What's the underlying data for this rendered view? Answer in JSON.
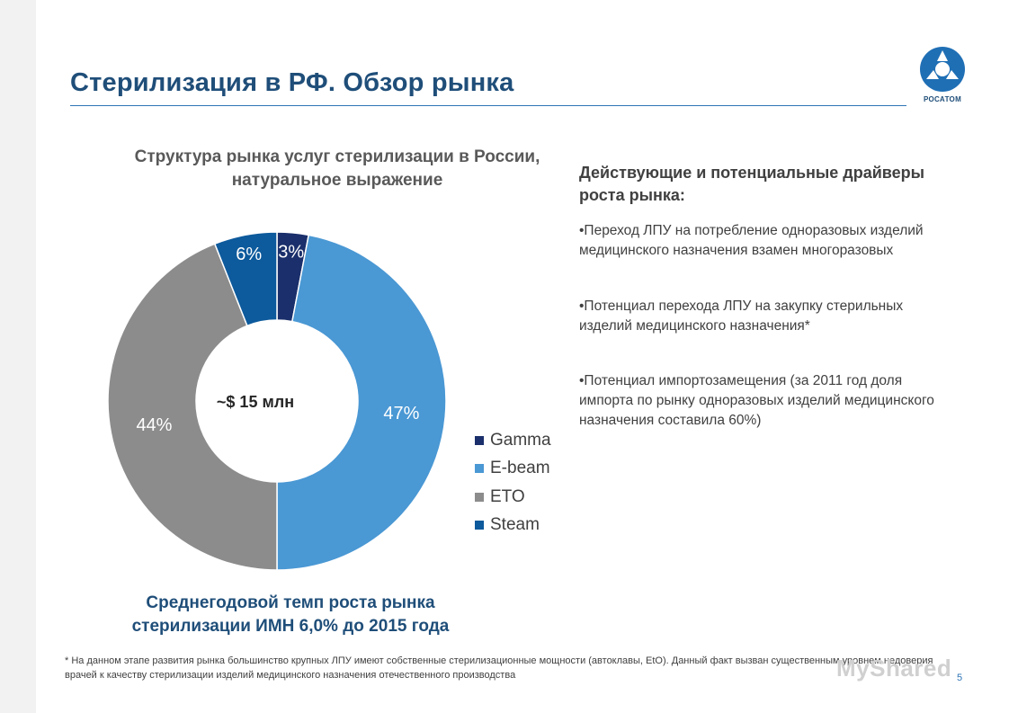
{
  "slide": {
    "title": "Стерилизация в РФ. Обзор рынка",
    "logo_text": "РОСАТОМ",
    "page_number": "5",
    "watermark": "MyShared"
  },
  "chart_data": {
    "type": "pie",
    "title": "Структура рынка услуг стерилизации в России, натуральное выражение",
    "center_label": "~$ 15 млн",
    "slices": [
      {
        "name": "Gamma",
        "value": 3,
        "label": "3%",
        "color": "#1a2f6b"
      },
      {
        "name": "E-beam",
        "value": 47,
        "label": "47%",
        "color": "#4a98d4"
      },
      {
        "name": "ETO",
        "value": 44,
        "label": "44%",
        "color": "#8c8c8c"
      },
      {
        "name": "Steam",
        "value": 6,
        "label": "6%",
        "color": "#0d5a9c"
      }
    ],
    "legend_position": "right"
  },
  "growth_note": "Среднегодовой темп  роста рынка стерилизации ИМН 6,0% до 2015 года",
  "drivers": {
    "heading": "Действующие и потенциальные драйверы роста рынка:",
    "items": [
      "•Переход ЛПУ на потребление одноразовых изделий медицинского назначения взамен многоразовых",
      "•Потенциал перехода ЛПУ на закупку стерильных изделий медицинского назначения*",
      "•Потенциал импортозамещения (за 2011 год доля импорта по рынку одноразовых изделий медицинского назначения составила 60%)"
    ]
  },
  "footnote": "* На данном этапе развития рынка большинство крупных ЛПУ имеют собственные стерилизационные мощности (автоклавы, EtO). Данный факт вызван существенным уровнем недоверия врачей к качеству стерилизации изделий медицинского назначения отечественного производства"
}
